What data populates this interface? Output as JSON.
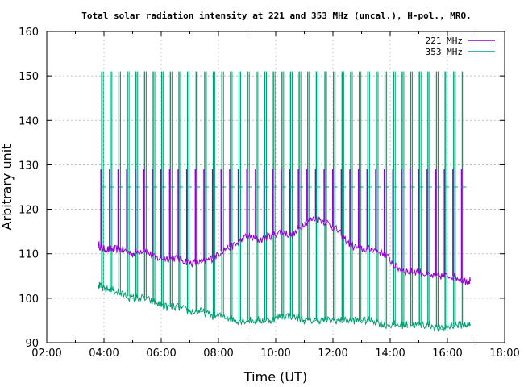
{
  "chart_data": {
    "type": "line",
    "title": "Total solar radiation intensity at 221 and 353 MHz (uncal.), H-pol., MRO.",
    "xlabel": "Time (UT)",
    "ylabel": "Arbitrary unit",
    "xlim_hours": [
      2,
      18
    ],
    "ylim": [
      90,
      160
    ],
    "x_ticks": [
      "02:00",
      "04:00",
      "06:00",
      "08:00",
      "10:00",
      "12:00",
      "14:00",
      "16:00",
      "18:00"
    ],
    "y_ticks": [
      "90",
      "100",
      "110",
      "120",
      "130",
      "140",
      "150",
      "160"
    ],
    "grid": true,
    "legend_position": "top-right",
    "series": [
      {
        "name": "221 MHz",
        "color": "#9400d3",
        "time_hours": [
          3.8,
          4.0,
          4.3,
          4.6,
          5.0,
          5.4,
          5.8,
          6.2,
          6.6,
          7.0,
          7.4,
          7.8,
          8.2,
          8.6,
          9.0,
          9.4,
          9.8,
          10.2,
          10.6,
          11.0,
          11.4,
          11.8,
          12.2,
          12.6,
          13.0,
          13.4,
          13.8,
          14.2,
          14.6,
          15.0,
          15.4,
          15.8,
          16.2,
          16.6,
          16.8
        ],
        "values": [
          112,
          111,
          111,
          111,
          110,
          111,
          109,
          109,
          109,
          108,
          108,
          109,
          111,
          112,
          114,
          113,
          114,
          115,
          114,
          117,
          118,
          117,
          115,
          112,
          111,
          111,
          110,
          107,
          106,
          106,
          105,
          105,
          105,
          104,
          104
        ]
      },
      {
        "name": "353 MHz",
        "color": "#009e73",
        "time_hours": [
          3.8,
          4.0,
          4.3,
          4.6,
          5.0,
          5.4,
          5.8,
          6.2,
          6.6,
          7.0,
          7.4,
          7.8,
          8.2,
          8.6,
          9.0,
          9.4,
          9.8,
          10.2,
          10.6,
          11.0,
          11.4,
          11.8,
          12.2,
          12.6,
          13.0,
          13.4,
          13.8,
          14.2,
          14.6,
          15.0,
          15.4,
          15.8,
          16.2,
          16.6,
          16.8
        ],
        "values": [
          103,
          102,
          102,
          101,
          100,
          100,
          99,
          98,
          98,
          97,
          97,
          96,
          96,
          95,
          95,
          95,
          95,
          96,
          96,
          95,
          95,
          95,
          95,
          95,
          95,
          95,
          94,
          94,
          94,
          94,
          94,
          93,
          94,
          94,
          94
        ]
      }
    ],
    "spikes_353MHz": {
      "peak_value": 151,
      "time_hours": [
        3.92,
        4.22,
        4.52,
        4.82,
        5.12,
        5.42,
        5.72,
        6.02,
        6.32,
        6.62,
        6.92,
        7.22,
        7.52,
        7.82,
        8.12,
        8.42,
        8.72,
        9.02,
        9.32,
        9.62,
        9.92,
        10.22,
        10.52,
        10.82,
        11.12,
        11.42,
        11.72,
        12.02,
        12.32,
        12.62,
        12.92,
        13.22,
        13.52,
        13.82,
        14.12,
        14.42,
        14.72,
        15.02,
        15.32,
        15.62,
        15.92,
        16.22,
        16.52
      ]
    }
  }
}
